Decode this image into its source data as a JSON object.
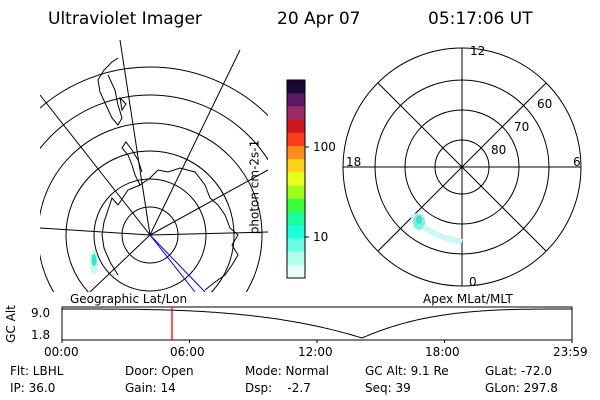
{
  "header": {
    "title": "Ultraviolet Imager",
    "date": "20 Apr 07",
    "time": "05:17:06 UT"
  },
  "colorbar": {
    "unit_label": "photon cm-2s-1",
    "ticks": [
      "100",
      "10"
    ],
    "colors": [
      "#1a0a33",
      "#5a1a66",
      "#992a66",
      "#cc1a1a",
      "#ff3b1a",
      "#ff8c1a",
      "#ffd11a",
      "#e8ff1a",
      "#9cff1a",
      "#3bff3b",
      "#1aff9c",
      "#1affd9",
      "#66ffe6",
      "#b3fff0",
      "#e6fffa"
    ]
  },
  "geo_map": {
    "label": "Geographic Lat/Lon",
    "aurora_color": "#40e0d0"
  },
  "polar_plot": {
    "label": "Apex MLat/MLT",
    "mlt_labels": {
      "top": "12",
      "left": "18",
      "right": "6",
      "bottom": "0"
    },
    "lat_labels": [
      "60",
      "70",
      "80"
    ],
    "aurora_color": "#40e0d0"
  },
  "timeline": {
    "axis_label": "GC Alt",
    "y_ticks": [
      "9.0",
      "1.8"
    ],
    "x_ticks": [
      "00:00",
      "06:00",
      "12:00",
      "18:00",
      "23:59"
    ],
    "marker_color": "#ff0000"
  },
  "info": {
    "flt": "Flt: LBHL",
    "door": "Door: Open",
    "mode": "Mode: Normal",
    "gc_alt": "GC Alt: 9.1 Re",
    "glat": "GLat: -72.0",
    "ip": "IP: 36.0",
    "gain": "Gain: 14",
    "dsp": "Dsp:    -2.7",
    "seq": "Seq: 39",
    "glon": "GLon: 297.8"
  }
}
